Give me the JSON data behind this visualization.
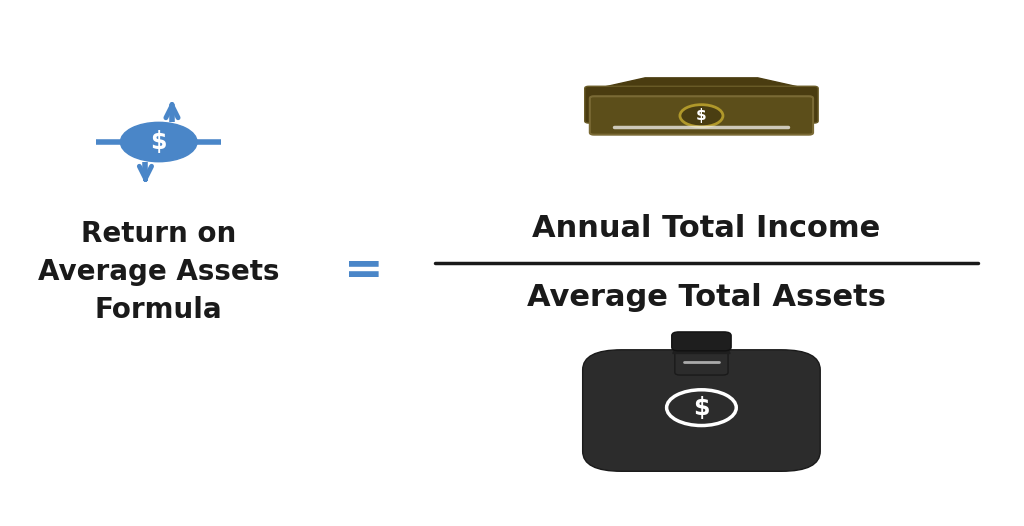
{
  "bg_color": "#ffffff",
  "left_label_lines": [
    "Return on",
    "Average Assets",
    "Formula"
  ],
  "equals_sign": "=",
  "numerator_text": "Annual Total Income",
  "denominator_text": "Average Total Assets",
  "left_label_color": "#1a1a1a",
  "equals_color": "#4a86c8",
  "fraction_color": "#1a1a1a",
  "icon_blue": "#4a86c8",
  "bill_dark": "#4a3c10",
  "bill_mid": "#5a4a18",
  "bill_light": "#6b5a22",
  "bag_dark": "#2a2a2a",
  "figsize": [
    10.24,
    5.26
  ],
  "dpi": 100
}
